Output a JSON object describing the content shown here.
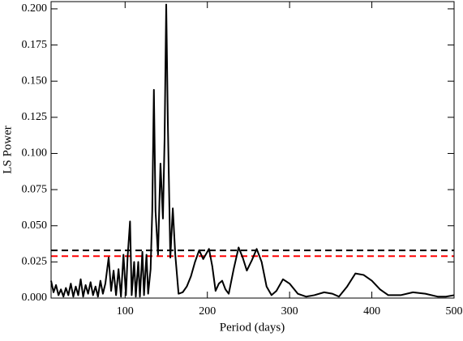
{
  "chart_data": {
    "type": "line",
    "x_label": "Period (days)",
    "y_label": "LS Power",
    "x": [
      10,
      13,
      16,
      19,
      22,
      25,
      28,
      31,
      34,
      37,
      40,
      43,
      46,
      49,
      52,
      55,
      58,
      61,
      64,
      67,
      70,
      73,
      76,
      80,
      83,
      86,
      89,
      92,
      95,
      98,
      101,
      103,
      106,
      108,
      111,
      113,
      116,
      118,
      121,
      123,
      126,
      128,
      131,
      133,
      135,
      137,
      140,
      143,
      146,
      148,
      150,
      152,
      155,
      158,
      161,
      165,
      170,
      175,
      180,
      185,
      190,
      195,
      202,
      206,
      210,
      214,
      218,
      222,
      226,
      232,
      238,
      243,
      248,
      254,
      260,
      266,
      272,
      278,
      284,
      292,
      300,
      310,
      320,
      330,
      342,
      352,
      360,
      370,
      380,
      390,
      400,
      410,
      420,
      435,
      450,
      465,
      480,
      490,
      500
    ],
    "series": [
      {
        "color": "#000000",
        "values": [
          0.012,
          0.004,
          0.009,
          0.002,
          0.006,
          0.001,
          0.007,
          0.002,
          0.01,
          0.001,
          0.008,
          0.002,
          0.013,
          0.001,
          0.009,
          0.003,
          0.011,
          0.002,
          0.008,
          0.001,
          0.012,
          0.003,
          0.01,
          0.028,
          0.005,
          0.019,
          0.002,
          0.02,
          0.001,
          0.03,
          0.002,
          0.028,
          0.053,
          0.002,
          0.025,
          0.001,
          0.025,
          0.001,
          0.032,
          0.002,
          0.03,
          0.003,
          0.02,
          0.06,
          0.144,
          0.06,
          0.03,
          0.093,
          0.055,
          0.11,
          0.203,
          0.12,
          0.028,
          0.062,
          0.03,
          0.003,
          0.004,
          0.008,
          0.015,
          0.025,
          0.033,
          0.027,
          0.034,
          0.022,
          0.005,
          0.01,
          0.012,
          0.006,
          0.003,
          0.02,
          0.035,
          0.028,
          0.019,
          0.026,
          0.034,
          0.025,
          0.008,
          0.002,
          0.005,
          0.013,
          0.01,
          0.003,
          0.001,
          0.002,
          0.004,
          0.003,
          0.001,
          0.008,
          0.017,
          0.016,
          0.012,
          0.006,
          0.002,
          0.002,
          0.004,
          0.003,
          0.001,
          0.001,
          0.002
        ]
      }
    ],
    "hlines": [
      {
        "value": 0.033,
        "color": "#000000"
      },
      {
        "value": 0.029,
        "color": "#ff0000"
      }
    ],
    "xlim": [
      10,
      500
    ],
    "ylim": [
      0,
      0.205
    ],
    "xticks": [
      100,
      200,
      300,
      400,
      500
    ],
    "yticks": [
      {
        "value": 0,
        "label": "0.000"
      },
      {
        "value": 0.025,
        "label": "0.025"
      },
      {
        "value": 0.05,
        "label": "0.050"
      },
      {
        "value": 0.075,
        "label": "0.075"
      },
      {
        "value": 0.1,
        "label": "0.100"
      },
      {
        "value": 0.125,
        "label": "0.125"
      },
      {
        "value": 0.15,
        "label": "0.150"
      },
      {
        "value": 0.175,
        "label": "0.175"
      },
      {
        "value": 0.2,
        "label": "0.200"
      }
    ]
  }
}
